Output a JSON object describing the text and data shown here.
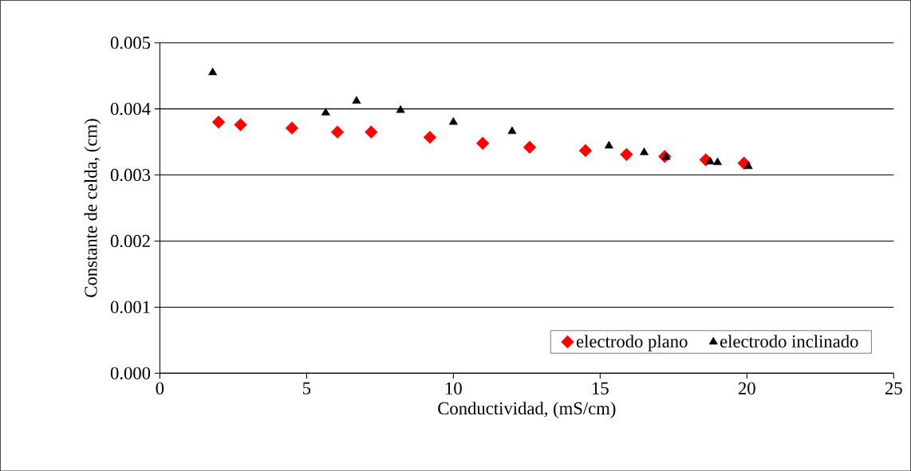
{
  "chart_data": {
    "type": "scatter",
    "xlabel": "Conductividad, (mS/cm)",
    "ylabel": "Constante de celda, (cm)",
    "xlim": [
      0,
      25
    ],
    "xticks": [
      0,
      5,
      10,
      15,
      20,
      25
    ],
    "ylim": [
      0,
      0.005
    ],
    "yticks": [
      {
        "value": 0,
        "label": "0.000"
      },
      {
        "value": 0.001,
        "label": "0.001"
      },
      {
        "value": 0.002,
        "label": "0.002"
      },
      {
        "value": 0.003,
        "label": "0.003"
      },
      {
        "value": 0.004,
        "label": "0.004"
      },
      {
        "value": 0.005,
        "label": "0.005"
      }
    ],
    "grid": "y",
    "legend": "bottom right",
    "series": [
      {
        "name": "electrodo plano",
        "color": "#ff0000",
        "marker": "diamond",
        "x": [
          2.0,
          2.75,
          4.5,
          6.05,
          7.2,
          9.2,
          11.0,
          12.6,
          14.5,
          15.9,
          17.2,
          18.6,
          19.9
        ],
        "values": [
          0.0038,
          0.00376,
          0.00371,
          0.00365,
          0.00365,
          0.00357,
          0.00348,
          0.00342,
          0.00337,
          0.00331,
          0.00328,
          0.00323,
          0.00318
        ]
      },
      {
        "name": "electrodo inclinado",
        "color": "#000000",
        "marker": "triangle",
        "x": [
          1.8,
          5.65,
          6.7,
          8.2,
          10.0,
          12.0,
          15.3,
          16.5,
          17.25,
          18.75,
          19.0,
          20.05
        ],
        "values": [
          0.00455,
          0.00394,
          0.00412,
          0.00398,
          0.0038,
          0.00366,
          0.00344,
          0.00334,
          0.00327,
          0.0032,
          0.00319,
          0.00313
        ]
      }
    ]
  }
}
